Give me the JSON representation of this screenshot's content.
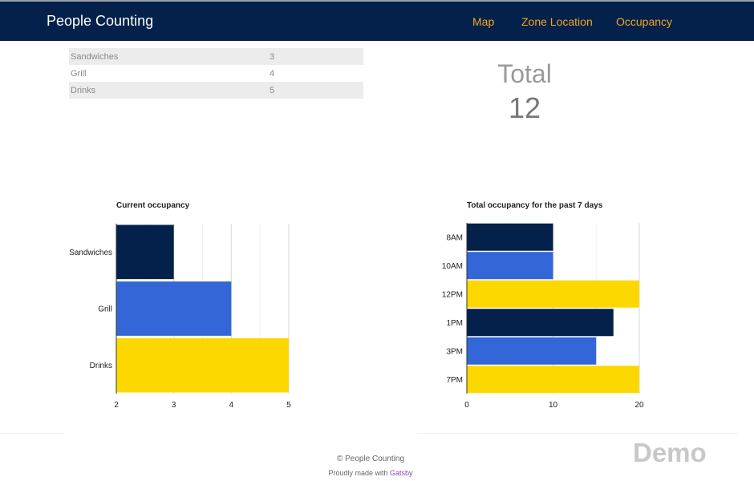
{
  "app": {
    "title": "People Counting"
  },
  "nav": {
    "items": [
      "Map",
      "Zone Location",
      "Occupancy"
    ]
  },
  "zones_table": {
    "rows": [
      {
        "name": "Sandwiches",
        "count": "3"
      },
      {
        "name": "Grill",
        "count": "4"
      },
      {
        "name": "Drinks",
        "count": "5"
      }
    ]
  },
  "total": {
    "label": "Total",
    "value": "12"
  },
  "colors": {
    "navy": "#03214a",
    "blue": "#3366d6",
    "yellow": "#fdd800",
    "nav_link": "#f5a623"
  },
  "chart_data": [
    {
      "type": "bar",
      "orientation": "horizontal",
      "title": "Current occupancy",
      "categories": [
        "Sandwiches",
        "Grill",
        "Drinks"
      ],
      "values": [
        3,
        4,
        5
      ],
      "colors": [
        "#03214a",
        "#3366d6",
        "#fdd800"
      ],
      "xlim": [
        2,
        5
      ],
      "xticks": [
        2,
        3,
        4,
        5
      ],
      "xlabel": "",
      "ylabel": "",
      "grid": true
    },
    {
      "type": "bar",
      "orientation": "horizontal",
      "title": "Total occupancy for the past 7 days",
      "categories": [
        "8AM",
        "10AM",
        "12PM",
        "1PM",
        "3PM",
        "7PM"
      ],
      "values": [
        10,
        10,
        20,
        17,
        15,
        20
      ],
      "colors": [
        "#03214a",
        "#3366d6",
        "#fdd800",
        "#03214a",
        "#3366d6",
        "#fdd800"
      ],
      "xlim": [
        0,
        20
      ],
      "xticks": [
        0,
        10,
        20
      ],
      "xlabel": "",
      "ylabel": "",
      "grid": true
    }
  ],
  "footer": {
    "copyright": "© People Counting",
    "made_with": "Proudly made with",
    "made_with_link": "Gatsby"
  },
  "watermark": "Demo"
}
